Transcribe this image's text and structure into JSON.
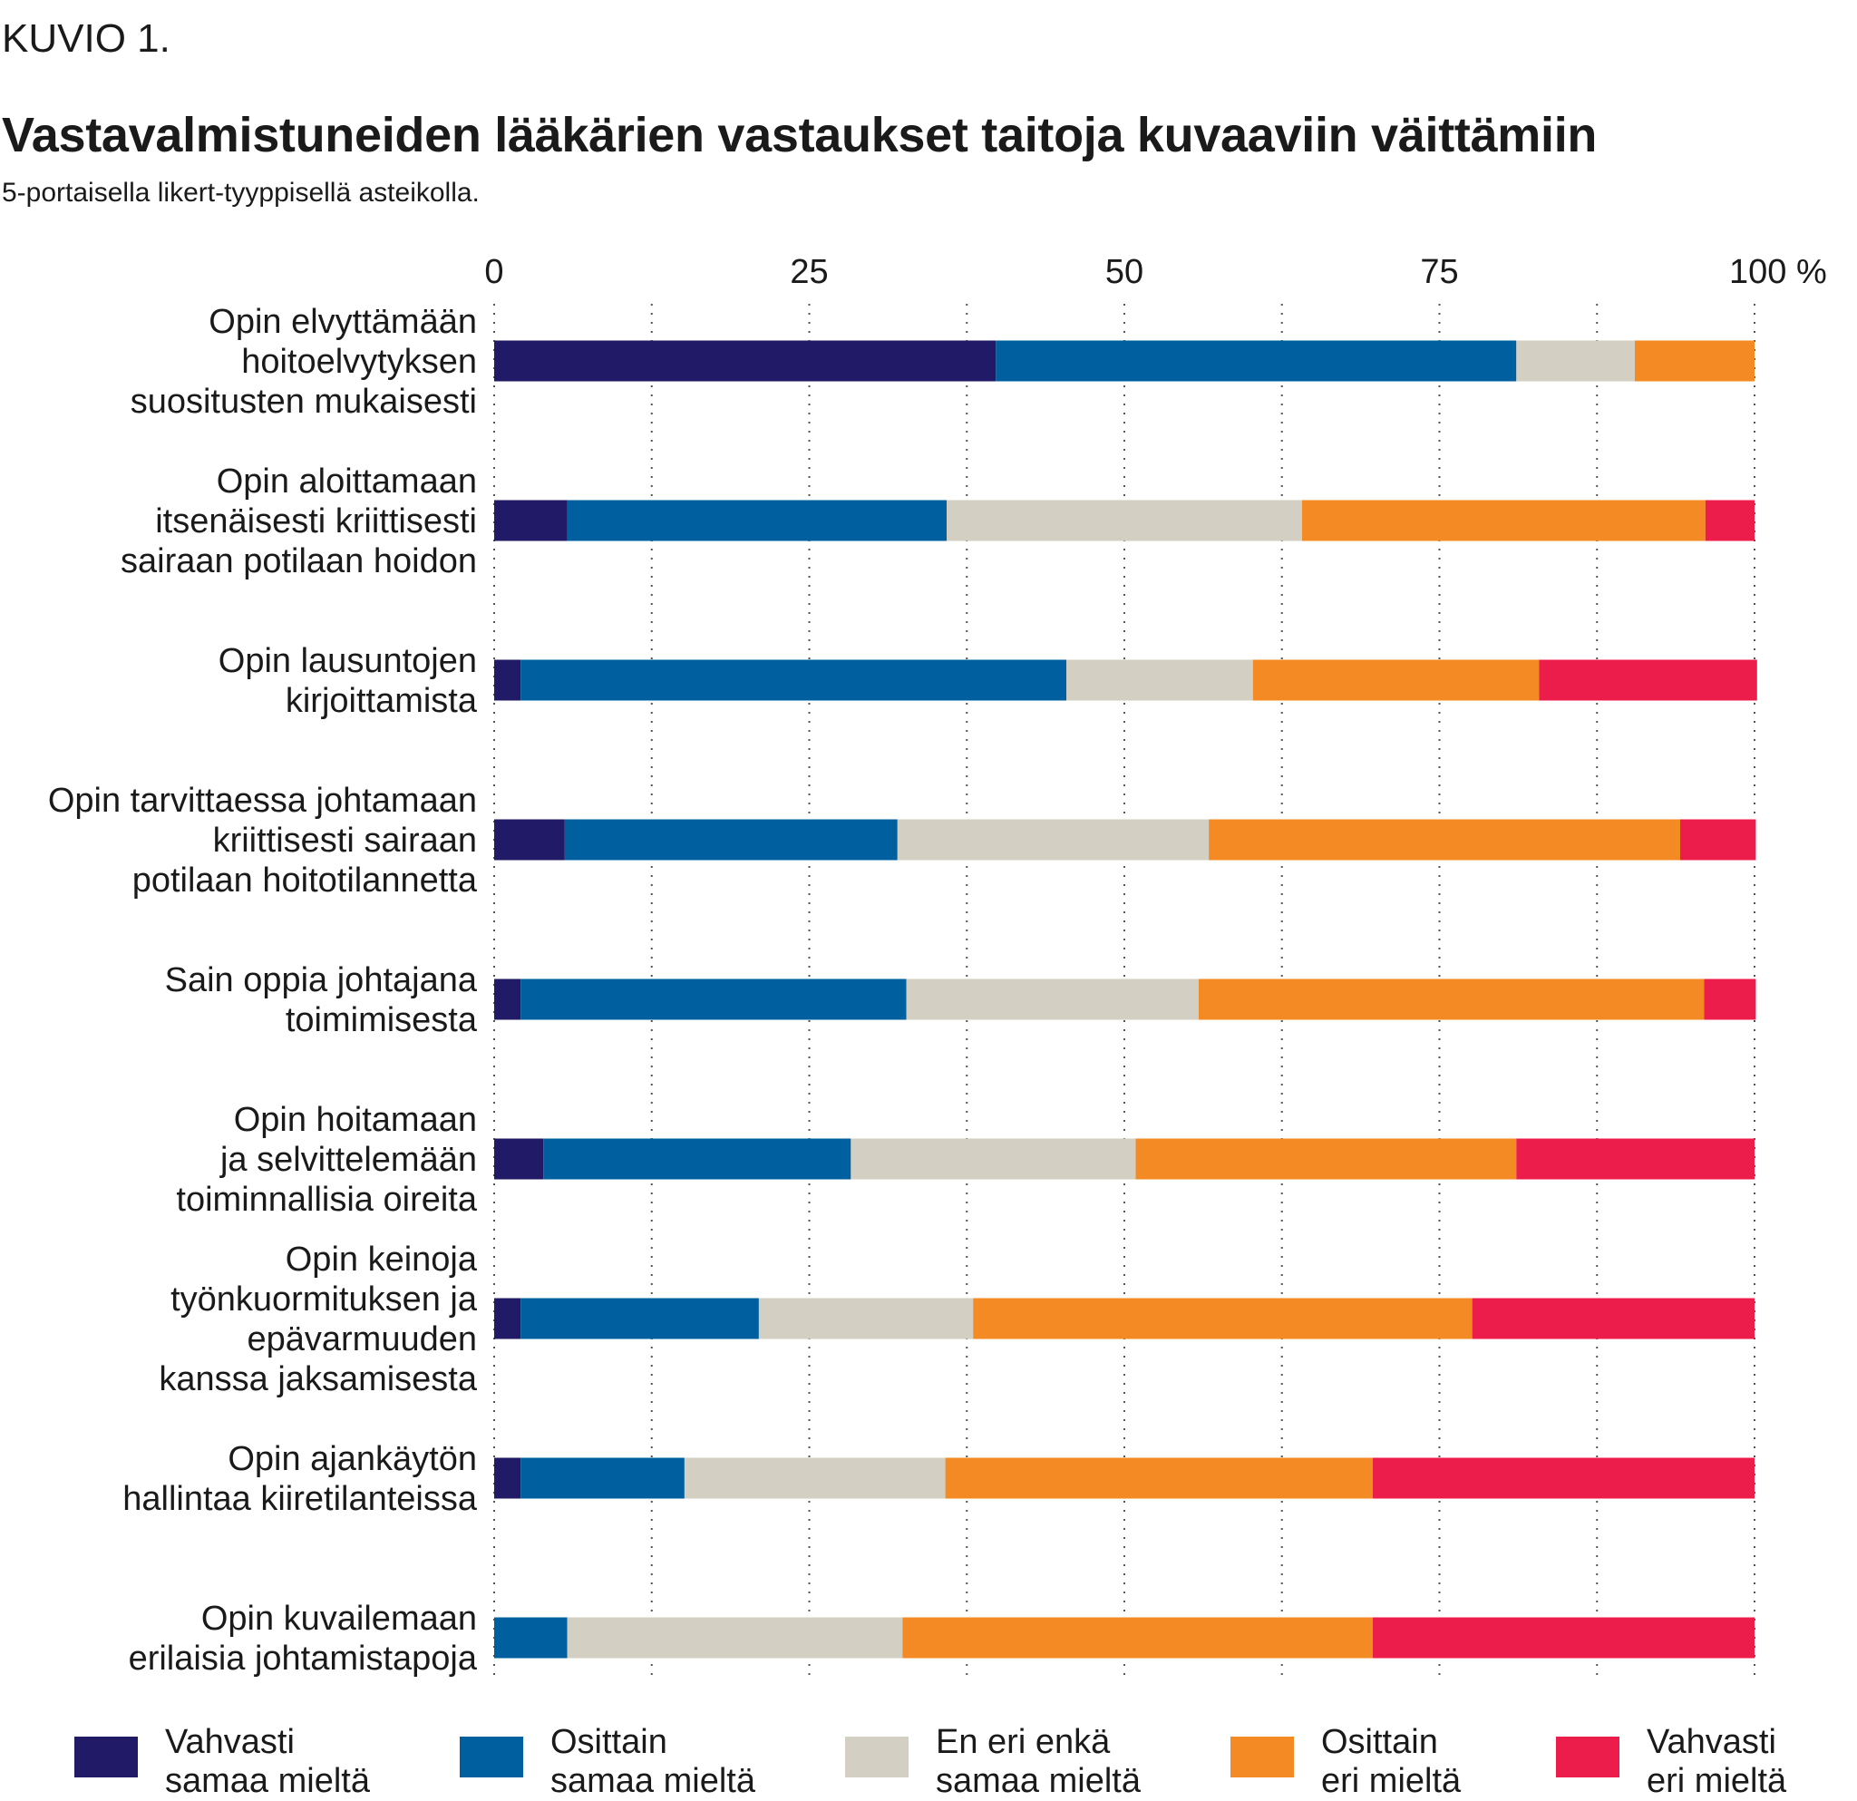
{
  "figure_label": "KUVIO 1.",
  "title": "Vastavalmistuneiden lääkärien vastaukset taitoja kuvaaviin väittämiin",
  "subtitle": "5-portaisella likert-tyyppisellä asteikolla.",
  "chart_data": {
    "type": "bar",
    "orientation": "horizontal",
    "stacked": true,
    "x_ticks": [
      "0",
      "25",
      "50",
      "75",
      "100 %"
    ],
    "xlim": [
      0,
      100
    ],
    "grid": true,
    "legend_position": "bottom",
    "categories": [
      "Opin elvyttämään hoitoelvytyksen suositusten mukaisesti",
      "Opin aloittamaan itsenäisesti kriittisesti sairaan potilaan hoidon",
      "Opin lausuntojen kirjoittamista",
      "Opin tarvittaessa johtamaan kriittisesti sairaan potilaan hoitotilannetta",
      "Sain oppia johtajana toimimisesta",
      "Opin hoitamaan ja selvittelemään toiminnallisia oireita",
      "Opin keinoja työnkuormituksen ja epävarmuuden kanssa jaksamisesta",
      "Opin ajankäytön hallintaa kiiretilanteissa",
      "Opin kuvailemaan erilaisia johtamistapoja"
    ],
    "category_lines": [
      [
        "Opin elvyttämään",
        "hoitoelvytyksen",
        "suositusten mukaisesti"
      ],
      [
        "Opin aloittamaan",
        "itsenäisesti kriittisesti",
        "sairaan potilaan hoidon"
      ],
      [
        "Opin lausuntojen",
        "kirjoittamista"
      ],
      [
        "Opin tarvittaessa johtamaan",
        "kriittisesti sairaan",
        "potilaan hoitotilannetta"
      ],
      [
        "Sain oppia johtajana",
        "toimimisesta"
      ],
      [
        "Opin hoitamaan",
        "ja selvittelemään",
        "toiminnallisia oireita"
      ],
      [
        "Opin keinoja",
        "työnkuormituksen ja",
        "epävarmuuden",
        "kanssa jaksamisesta"
      ],
      [
        "Opin ajankäytön",
        "hallintaa kiiretilanteissa"
      ],
      [
        "Opin kuvailemaan",
        "erilaisia johtamistapoja"
      ]
    ],
    "series": [
      {
        "name": "Vahvasti samaa mieltä",
        "name_lines": [
          "Vahvasti",
          "samaa mieltä"
        ],
        "color": "#211a66",
        "values": [
          39.8,
          5.8,
          2.1,
          5.6,
          2.1,
          3.9,
          2.1,
          2.1,
          0
        ]
      },
      {
        "name": "Osittain samaa mieltä",
        "name_lines": [
          "Osittain",
          "samaa mieltä"
        ],
        "color": "#00609f",
        "values": [
          41.3,
          30.1,
          43.3,
          26.4,
          30.6,
          24.4,
          18.9,
          13.0,
          5.8
        ]
      },
      {
        "name": "En eri enkä samaa mieltä",
        "name_lines": [
          "En eri enkä",
          "samaa mieltä"
        ],
        "color": "#d3cfc2",
        "values": [
          9.4,
          28.2,
          14.8,
          24.7,
          23.2,
          22.6,
          17.0,
          20.7,
          26.6
        ]
      },
      {
        "name": "Osittain eri mieltä",
        "name_lines": [
          "Osittain",
          "eri mieltä"
        ],
        "color": "#f48a23",
        "values": [
          9.5,
          32.0,
          22.7,
          37.4,
          40.1,
          30.2,
          39.6,
          33.9,
          37.3
        ]
      },
      {
        "name": "Vahvasti eri mieltä",
        "name_lines": [
          "Vahvasti",
          "eri mieltä"
        ],
        "color": "#ec1c4b",
        "values": [
          0,
          3.9,
          17.3,
          6.0,
          4.1,
          18.9,
          22.4,
          30.3,
          30.3
        ]
      }
    ]
  }
}
